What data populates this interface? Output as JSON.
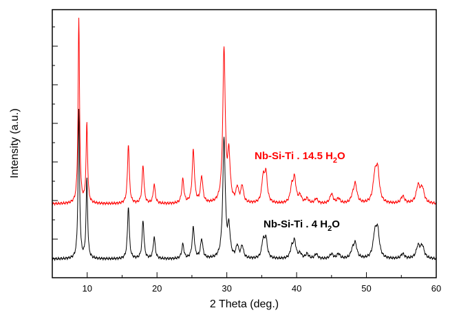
{
  "chart_data": {
    "type": "line",
    "xlabel": "2 Theta (deg.)",
    "ylabel": "Intensity (a.u.)",
    "xlim": [
      5,
      60
    ],
    "ylim": [
      0,
      100
    ],
    "x_ticks": [
      10,
      20,
      30,
      40,
      50,
      60
    ],
    "x_tick_labels": [
      "10",
      "20",
      "30",
      "40",
      "50",
      "60"
    ],
    "y_tick_labels_shown": false,
    "grid": false,
    "legend": "none",
    "series": [
      {
        "name": "Nb-Si-Ti . 14.5 H2O",
        "label_parts": {
          "prefix": "Nb-Si-Ti . 14.5 H",
          "subscript": "2",
          "suffix": "O"
        },
        "color": "#ff0000",
        "baseline": 23,
        "peaks": [
          [
            8.8,
            77
          ],
          [
            9.95,
            33
          ],
          [
            15.9,
            25
          ],
          [
            18.0,
            16
          ],
          [
            19.6,
            8
          ],
          [
            23.7,
            10
          ],
          [
            25.2,
            22
          ],
          [
            26.4,
            11
          ],
          [
            29.6,
            64
          ],
          [
            30.3,
            19
          ],
          [
            31.5,
            6
          ],
          [
            32.2,
            7
          ],
          [
            35.2,
            10
          ],
          [
            35.6,
            12
          ],
          [
            39.3,
            6
          ],
          [
            39.7,
            10
          ],
          [
            40.5,
            3
          ],
          [
            41.5,
            2
          ],
          [
            42.8,
            2
          ],
          [
            45.0,
            4
          ],
          [
            46.0,
            2
          ],
          [
            48.0,
            2
          ],
          [
            48.4,
            8
          ],
          [
            51.2,
            10
          ],
          [
            51.6,
            13
          ],
          [
            55.2,
            3
          ],
          [
            57.4,
            7
          ],
          [
            58.0,
            6
          ]
        ]
      },
      {
        "name": "Nb-Si-Ti . 4 H2O",
        "label_parts": {
          "prefix": "Nb-Si-Ti . 4 H",
          "subscript": "2",
          "suffix": "O"
        },
        "color": "#000000",
        "baseline": 0,
        "peaks": [
          [
            8.8,
            62
          ],
          [
            9.95,
            33
          ],
          [
            15.9,
            22
          ],
          [
            18.0,
            16
          ],
          [
            19.6,
            9
          ],
          [
            23.7,
            6
          ],
          [
            25.2,
            13
          ],
          [
            26.4,
            8
          ],
          [
            29.6,
            50
          ],
          [
            30.3,
            12
          ],
          [
            31.5,
            5
          ],
          [
            32.2,
            5
          ],
          [
            35.2,
            7
          ],
          [
            35.6,
            8
          ],
          [
            39.3,
            4
          ],
          [
            39.7,
            7
          ],
          [
            40.5,
            2
          ],
          [
            41.5,
            2
          ],
          [
            42.8,
            2
          ],
          [
            45.0,
            2
          ],
          [
            46.0,
            2
          ],
          [
            48.0,
            3
          ],
          [
            48.4,
            6
          ],
          [
            51.2,
            9
          ],
          [
            51.6,
            11
          ],
          [
            55.2,
            2
          ],
          [
            57.4,
            5
          ],
          [
            58.0,
            5
          ]
        ]
      }
    ]
  }
}
